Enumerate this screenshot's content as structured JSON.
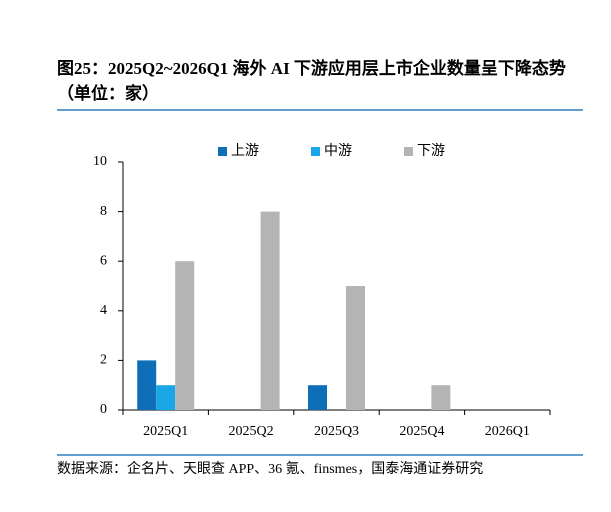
{
  "chart_data": {
    "type": "bar",
    "title": "图25：2025Q2~2026Q1 海外 AI 下游应用层上市企业数量呈下降态势（单位：家）",
    "source": "数据来源：企名片、天眼查 APP、36 氪、finsmes，国泰海通证券研究",
    "categories": [
      "2025Q1",
      "2025Q2",
      "2025Q3",
      "2025Q4",
      "2026Q1"
    ],
    "series": [
      {
        "name": "上游",
        "color": "#0e6eb8",
        "values": [
          2,
          0,
          1,
          0,
          0
        ]
      },
      {
        "name": "中游",
        "color": "#1aa7e8",
        "values": [
          1,
          0,
          0,
          0,
          0
        ]
      },
      {
        "name": "下游",
        "color": "#b4b4b4",
        "values": [
          6,
          8,
          5,
          1,
          0
        ]
      }
    ],
    "ylim": [
      0,
      10
    ],
    "yticks": [
      0,
      2,
      4,
      6,
      8,
      10
    ]
  }
}
